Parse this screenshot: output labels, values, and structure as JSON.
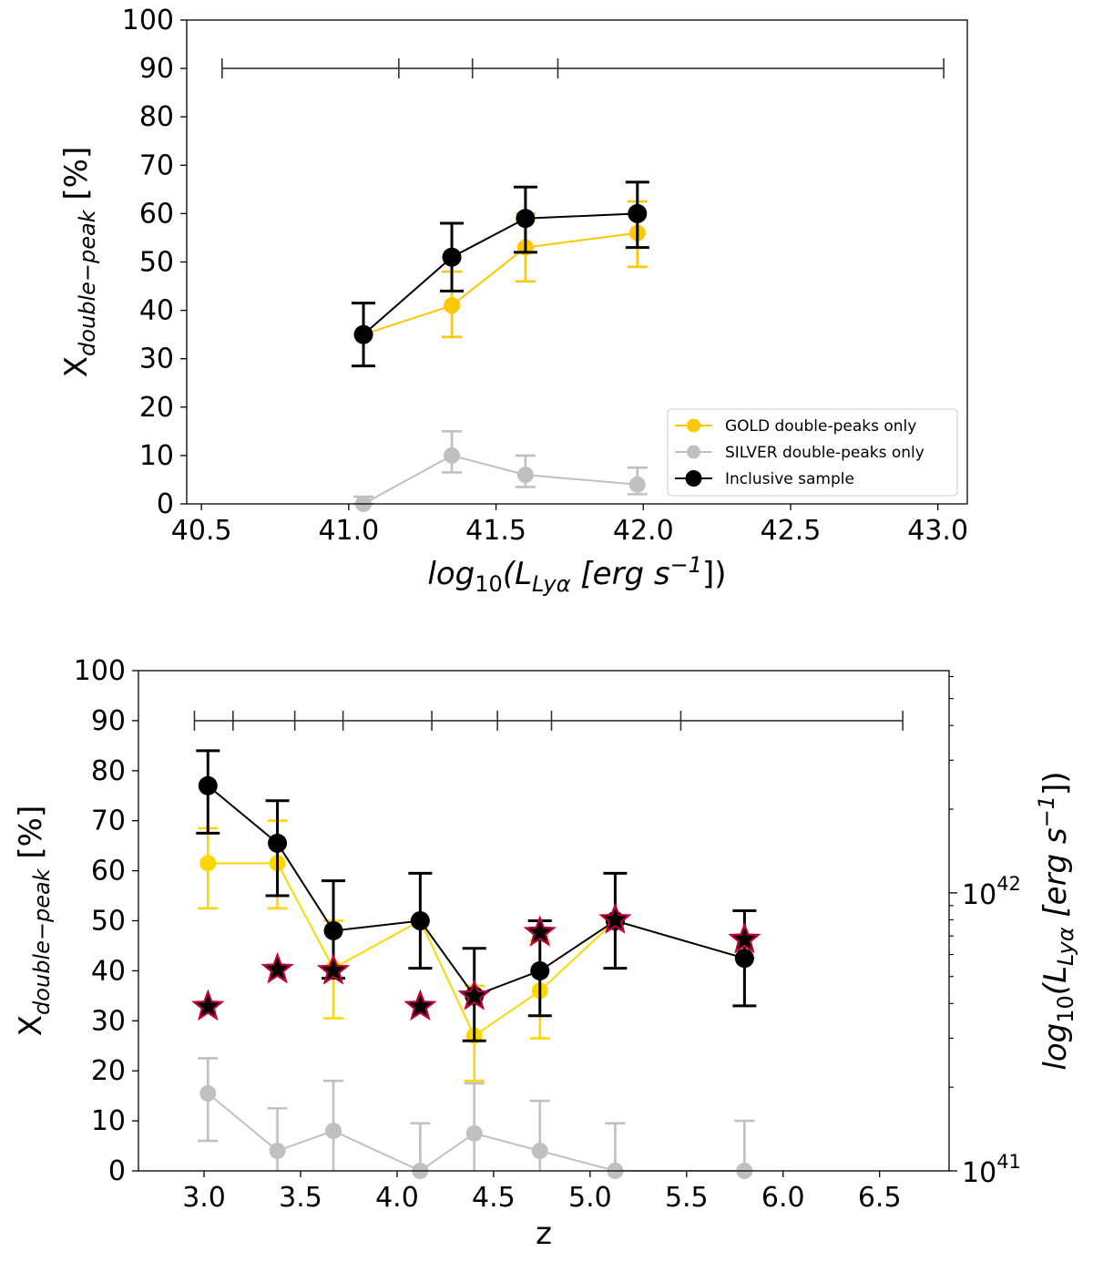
{
  "chart_data": [
    {
      "type": "line",
      "xlabel": "log10(LLyα [erg s−1])",
      "ylabel": "Xdouble−peak [%]",
      "xlim": [
        40.45,
        43.1
      ],
      "ylim": [
        0,
        100
      ],
      "xticks": [
        "40.5",
        "41.0",
        "41.5",
        "42.0",
        "42.5",
        "43.0"
      ],
      "xtick_values": [
        40.5,
        41.0,
        41.5,
        42.0,
        42.5,
        43.0
      ],
      "yticks": [
        "0",
        "10",
        "20",
        "30",
        "40",
        "50",
        "60",
        "70",
        "80",
        "90",
        "100"
      ],
      "ytick_values": [
        0,
        10,
        20,
        30,
        40,
        50,
        60,
        70,
        80,
        90,
        100
      ],
      "bin_edges": [
        40.57,
        41.17,
        41.42,
        41.71,
        43.02
      ],
      "bin_bar_y": 90,
      "legend_position": "lower-right",
      "series": [
        {
          "name": "GOLD double-peaks only",
          "color": "#FFC700",
          "x": [
            41.05,
            41.35,
            41.6,
            41.98
          ],
          "y": [
            35,
            41,
            53,
            56
          ],
          "err_low": [
            35,
            34.5,
            46,
            49
          ],
          "err_high": [
            35,
            48,
            60,
            62.5
          ]
        },
        {
          "name": "SILVER double-peaks only",
          "color": "#C0C0C0",
          "x": [
            41.05,
            41.35,
            41.6,
            41.98
          ],
          "y": [
            0,
            10,
            6,
            4
          ],
          "err_low": [
            0,
            6.5,
            3.5,
            2
          ],
          "err_high": [
            1.5,
            15,
            10,
            7.5
          ]
        },
        {
          "name": "Inclusive sample",
          "color": "#000000",
          "x": [
            41.05,
            41.35,
            41.6,
            41.98
          ],
          "y": [
            35,
            51,
            59,
            60
          ],
          "err_low": [
            28.5,
            44,
            52,
            53
          ],
          "err_high": [
            41.5,
            58,
            65.5,
            66.5
          ]
        }
      ]
    },
    {
      "type": "line",
      "xlabel": "z",
      "ylabel": "Xdouble−peak [%]",
      "ylabel_right": "log10(LLyα [erg s−1])",
      "xlim": [
        2.66,
        6.86
      ],
      "ylim": [
        0,
        100
      ],
      "xticks": [
        "3.0",
        "3.5",
        "4.0",
        "4.5",
        "5.0",
        "5.5",
        "6.0",
        "6.5"
      ],
      "xtick_values": [
        3.0,
        3.5,
        4.0,
        4.5,
        5.0,
        5.5,
        6.0,
        6.5
      ],
      "yticks": [
        "0",
        "10",
        "20",
        "30",
        "40",
        "50",
        "60",
        "70",
        "80",
        "90",
        "100"
      ],
      "ytick_values": [
        0,
        10,
        20,
        30,
        40,
        50,
        60,
        70,
        80,
        90,
        100
      ],
      "right_axis": {
        "scale": "log",
        "range": [
          1e+41,
          6.3e+42
        ],
        "major_ticks": [
          1e+41,
          1e+42
        ],
        "major_labels": [
          "10",
          "10"
        ],
        "major_exponents": [
          "41",
          "42"
        ],
        "minor_ticks": [
          2e+41,
          3e+41,
          4e+41,
          5e+41,
          6e+41,
          7e+41,
          8e+41,
          9e+41,
          2e+42,
          3e+42,
          4e+42,
          5e+42,
          6e+42
        ]
      },
      "bin_edges": [
        2.95,
        3.15,
        3.47,
        3.72,
        4.18,
        4.52,
        4.8,
        5.47,
        6.62
      ],
      "bin_bar_y": 90,
      "series": [
        {
          "name": "GOLD double-peaks only",
          "color": "#FFD700",
          "x": [
            3.02,
            3.38,
            3.67,
            4.12,
            4.4,
            4.74,
            5.13,
            5.8
          ],
          "y": [
            61.5,
            61.5,
            40.5,
            50,
            27,
            36,
            50,
            42.5
          ],
          "err_low": [
            52.5,
            52.5,
            30.5,
            40.5,
            18,
            26.5,
            40.5,
            33
          ],
          "err_high": [
            68.5,
            70,
            50,
            50,
            37,
            46,
            50,
            42.5
          ]
        },
        {
          "name": "SILVER double-peaks only",
          "color": "#C0C0C0",
          "x": [
            3.02,
            3.38,
            3.67,
            4.12,
            4.4,
            4.74,
            5.13,
            5.8
          ],
          "y": [
            15.5,
            4,
            8,
            0,
            7.5,
            4,
            0,
            0
          ],
          "err_low": [
            6,
            0,
            0,
            0,
            0,
            0,
            0,
            0
          ],
          "err_high": [
            22.5,
            12.5,
            18,
            9.5,
            17.5,
            14,
            9.5,
            10
          ]
        },
        {
          "name": "Inclusive sample",
          "color": "#000000",
          "x": [
            3.02,
            3.38,
            3.67,
            4.12,
            4.4,
            4.74,
            5.13,
            5.8
          ],
          "y": [
            77,
            65.5,
            48,
            50,
            35,
            40,
            50,
            42.5
          ],
          "err_low": [
            67.5,
            55,
            38.5,
            40.5,
            26,
            31,
            40.5,
            33
          ],
          "err_high": [
            84,
            74,
            58,
            59.5,
            44.5,
            50,
            59.5,
            52
          ]
        }
      ],
      "stars": {
        "name": "median log10(LLyα)",
        "axis": "right",
        "color": "#000000",
        "edge_color": "#C0003C",
        "x": [
          3.02,
          3.38,
          3.67,
          4.12,
          4.4,
          4.74,
          5.13,
          5.8
        ],
        "values": [
          3.9e+41,
          5.3e+41,
          5.25e+41,
          3.9e+41,
          4.25e+41,
          7.2e+41,
          8e+41,
          6.8e+41
        ]
      }
    }
  ]
}
